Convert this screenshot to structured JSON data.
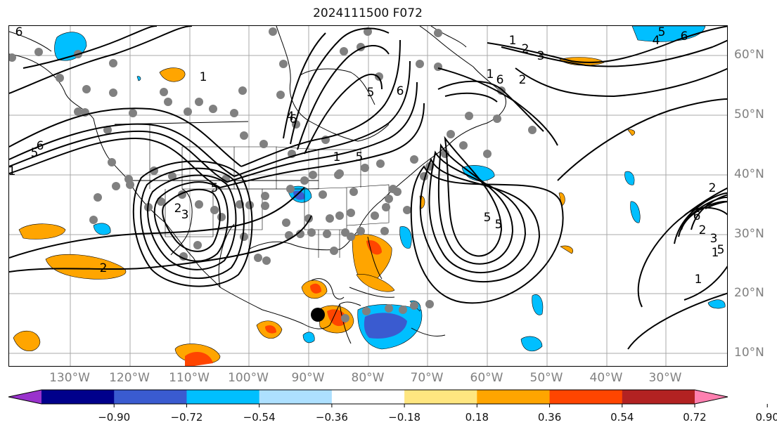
{
  "title": "2024111500 F072",
  "longitude_labels": [
    "130°W",
    "120°W",
    "110°W",
    "100°W",
    "90°W",
    "80°W",
    "70°W",
    "60°W",
    "50°W",
    "40°W",
    "30°W"
  ],
  "latitude_labels": [
    "60°N",
    "50°N",
    "40°N",
    "30°N",
    "20°N",
    "10°N"
  ],
  "colorbar": {
    "ticks": [
      "−0.90",
      "−0.72",
      "−0.54",
      "−0.36",
      "−0.18",
      "0.18",
      "0.36",
      "0.54",
      "0.72",
      "0.90"
    ],
    "colors": [
      "#9932CC",
      "#00008B",
      "#3A5BD0",
      "#00BFFF",
      "#ADE0FF",
      "#FFFFFF",
      "#FFE680",
      "#FFA500",
      "#FF4500",
      "#B22222",
      "#FF80B0"
    ]
  },
  "contour_labels": [
    "6",
    "1",
    "2",
    "3",
    "4",
    "5",
    "6",
    "6",
    "5",
    "1",
    "2",
    "1",
    "5",
    "6",
    "4",
    "6",
    "5",
    "1",
    "2",
    "3",
    "5",
    "1",
    "2",
    "6",
    "5",
    "5",
    "6",
    "2",
    "3",
    "1",
    "5",
    "1",
    "2"
  ],
  "marker": {
    "lon": -88.5,
    "lat": 16.8,
    "label": ""
  }
}
